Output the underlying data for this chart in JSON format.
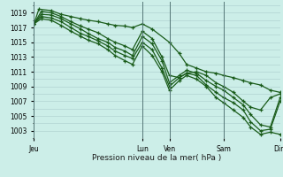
{
  "title": "Pression niveau de la mer( hPa )",
  "bg_color": "#cceee8",
  "grid_major_color": "#aacccc",
  "grid_minor_color": "#bbdddd",
  "line_color": "#1a5c1a",
  "ylim": [
    1002.0,
    1020.5
  ],
  "yticks": [
    1003,
    1005,
    1007,
    1009,
    1011,
    1013,
    1015,
    1017,
    1019
  ],
  "day_labels": [
    "Jeu",
    "Lun",
    "Ven",
    "Sam",
    "Dim"
  ],
  "day_positions": [
    0.0,
    0.44,
    0.55,
    0.77,
    1.0
  ],
  "vline_positions": [
    0.0,
    0.44,
    0.55,
    0.77,
    1.0
  ],
  "lines": [
    {
      "x": [
        0.0,
        0.02,
        0.07,
        0.11,
        0.15,
        0.19,
        0.22,
        0.26,
        0.3,
        0.33,
        0.37,
        0.4,
        0.44,
        0.48,
        0.55,
        0.59,
        0.62,
        0.66,
        0.7,
        0.74,
        0.77,
        0.81,
        0.85,
        0.88,
        0.92,
        0.96,
        1.0
      ],
      "y": [
        1017.5,
        1019.5,
        1019.3,
        1018.8,
        1018.5,
        1018.2,
        1018.0,
        1017.8,
        1017.5,
        1017.3,
        1017.2,
        1017.0,
        1017.5,
        1016.8,
        1015.0,
        1013.5,
        1012.0,
        1011.5,
        1011.0,
        1010.8,
        1010.5,
        1010.2,
        1009.8,
        1009.5,
        1009.2,
        1008.5,
        1008.2
      ]
    },
    {
      "x": [
        0.0,
        0.03,
        0.07,
        0.11,
        0.15,
        0.19,
        0.22,
        0.26,
        0.3,
        0.33,
        0.37,
        0.4,
        0.44,
        0.48,
        0.52,
        0.55,
        0.59,
        0.62,
        0.66,
        0.7,
        0.74,
        0.77,
        0.81,
        0.85,
        0.88,
        0.92,
        0.96,
        1.0
      ],
      "y": [
        1017.5,
        1019.2,
        1019.0,
        1018.5,
        1017.8,
        1017.2,
        1016.8,
        1016.3,
        1015.5,
        1015.0,
        1014.5,
        1014.0,
        1016.5,
        1015.5,
        1013.0,
        1010.5,
        1010.2,
        1010.8,
        1011.0,
        1010.5,
        1009.5,
        1009.0,
        1008.2,
        1007.0,
        1006.2,
        1005.8,
        1007.5,
        1008.0
      ]
    },
    {
      "x": [
        0.0,
        0.03,
        0.07,
        0.11,
        0.15,
        0.19,
        0.22,
        0.26,
        0.3,
        0.33,
        0.37,
        0.4,
        0.44,
        0.48,
        0.52,
        0.55,
        0.59,
        0.62,
        0.66,
        0.7,
        0.74,
        0.77,
        0.81,
        0.85,
        0.88,
        0.92,
        0.96,
        1.0
      ],
      "y": [
        1017.5,
        1018.8,
        1018.7,
        1018.2,
        1017.5,
        1016.8,
        1016.2,
        1015.5,
        1015.0,
        1014.3,
        1013.8,
        1013.2,
        1015.8,
        1014.8,
        1012.5,
        1009.5,
        1010.5,
        1011.2,
        1010.8,
        1009.8,
        1009.0,
        1008.5,
        1007.5,
        1006.5,
        1005.2,
        1003.8,
        1003.5,
        1007.5
      ]
    },
    {
      "x": [
        0.0,
        0.03,
        0.07,
        0.11,
        0.15,
        0.19,
        0.22,
        0.26,
        0.3,
        0.33,
        0.37,
        0.4,
        0.44,
        0.48,
        0.52,
        0.55,
        0.59,
        0.62,
        0.66,
        0.7,
        0.74,
        0.77,
        0.81,
        0.85,
        0.88,
        0.92,
        0.96,
        1.0
      ],
      "y": [
        1017.5,
        1018.5,
        1018.3,
        1017.8,
        1017.0,
        1016.2,
        1015.8,
        1015.2,
        1014.5,
        1013.8,
        1013.2,
        1012.8,
        1015.0,
        1014.0,
        1011.5,
        1009.0,
        1010.2,
        1010.8,
        1010.5,
        1009.2,
        1008.2,
        1007.5,
        1006.8,
        1005.8,
        1004.2,
        1003.0,
        1003.2,
        1007.0
      ]
    },
    {
      "x": [
        0.0,
        0.03,
        0.07,
        0.11,
        0.15,
        0.19,
        0.22,
        0.26,
        0.3,
        0.33,
        0.37,
        0.4,
        0.44,
        0.48,
        0.52,
        0.55,
        0.59,
        0.62,
        0.66,
        0.7,
        0.74,
        0.77,
        0.81,
        0.85,
        0.88,
        0.92,
        0.96,
        1.0
      ],
      "y": [
        1017.5,
        1018.2,
        1018.0,
        1017.3,
        1016.5,
        1015.8,
        1015.3,
        1014.8,
        1014.0,
        1013.2,
        1012.5,
        1012.0,
        1014.5,
        1013.2,
        1011.0,
        1008.5,
        1009.8,
        1010.5,
        1010.0,
        1009.0,
        1007.5,
        1006.8,
        1005.8,
        1004.8,
        1003.5,
        1002.5,
        1002.8,
        1002.5
      ]
    }
  ]
}
